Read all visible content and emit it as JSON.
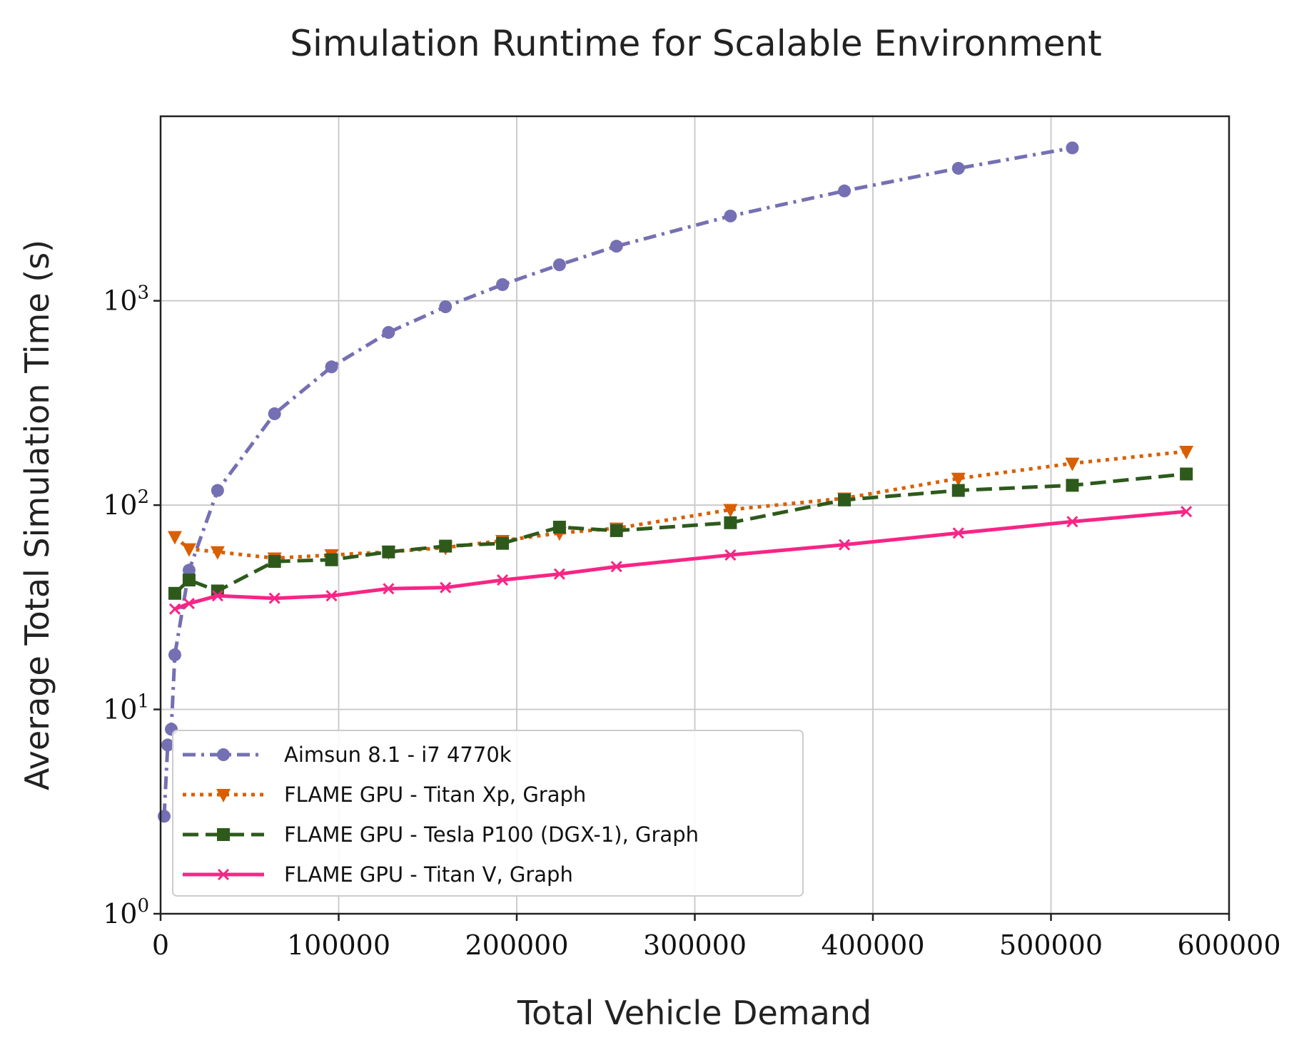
{
  "chart_data": {
    "type": "line",
    "title": "Simulation Runtime for Scalable Environment",
    "xlabel": "Total Vehicle Demand",
    "ylabel": "Average Total Simulation Time (s)",
    "xlim": [
      0,
      600000
    ],
    "ylim": [
      1,
      8000
    ],
    "yscale": "log",
    "grid": true,
    "legend_position": "lower-left",
    "x_ticks": [
      {
        "value": 0,
        "label": "0"
      },
      {
        "value": 100000,
        "label": "100000"
      },
      {
        "value": 200000,
        "label": "200000"
      },
      {
        "value": 300000,
        "label": "300000"
      },
      {
        "value": 400000,
        "label": "400000"
      },
      {
        "value": 500000,
        "label": "500000"
      },
      {
        "value": 600000,
        "label": "600000"
      }
    ],
    "y_ticks": [
      {
        "value": 1,
        "base": "10",
        "exp": "0"
      },
      {
        "value": 10,
        "base": "10",
        "exp": "1"
      },
      {
        "value": 100,
        "base": "10",
        "exp": "2"
      },
      {
        "value": 1000,
        "base": "10",
        "exp": "3"
      }
    ],
    "series": [
      {
        "name": "Aimsun 8.1 - i7 4770k",
        "color": "#7570b3",
        "dash": "dashdot",
        "marker": "circle",
        "x": [
          2000,
          4000,
          6000,
          8000,
          16000,
          32000,
          64000,
          96000,
          128000,
          160000,
          192000,
          224000,
          256000,
          320000,
          384000,
          448000,
          512000
        ],
        "y": [
          3.0,
          6.7,
          8.0,
          18.5,
          48,
          118,
          280,
          475,
          700,
          935,
          1200,
          1500,
          1850,
          2600,
          3450,
          4450,
          5600
        ]
      },
      {
        "name": "FLAME GPU - Titan Xp, Graph",
        "color": "#d95f02",
        "dash": "dotted",
        "marker": "triangle-down",
        "x": [
          8000,
          16000,
          32000,
          64000,
          96000,
          128000,
          160000,
          192000,
          224000,
          256000,
          320000,
          384000,
          448000,
          512000,
          576000
        ],
        "y": [
          70,
          61,
          59,
          55,
          57,
          59,
          62,
          67,
          73,
          77,
          95,
          108,
          135,
          160,
          183
        ]
      },
      {
        "name": "FLAME GPU - Tesla P100 (DGX-1), Graph",
        "color": "#2d5a1b",
        "dash": "dashed",
        "marker": "square",
        "x": [
          8000,
          16000,
          32000,
          64000,
          96000,
          128000,
          160000,
          192000,
          224000,
          256000,
          320000,
          384000,
          448000,
          512000,
          576000
        ],
        "y": [
          37,
          43,
          38,
          53,
          54,
          59,
          63,
          65,
          78,
          75,
          82,
          106,
          118,
          125,
          142
        ]
      },
      {
        "name": "FLAME GPU - Titan V, Graph",
        "color": "#f72585",
        "dash": "solid",
        "marker": "x",
        "x": [
          8000,
          16000,
          32000,
          64000,
          96000,
          128000,
          160000,
          192000,
          224000,
          256000,
          320000,
          384000,
          448000,
          512000,
          576000
        ],
        "y": [
          31,
          33,
          36,
          35,
          36,
          39,
          39.5,
          43,
          46,
          50,
          57,
          64,
          73,
          83,
          93
        ]
      }
    ]
  }
}
